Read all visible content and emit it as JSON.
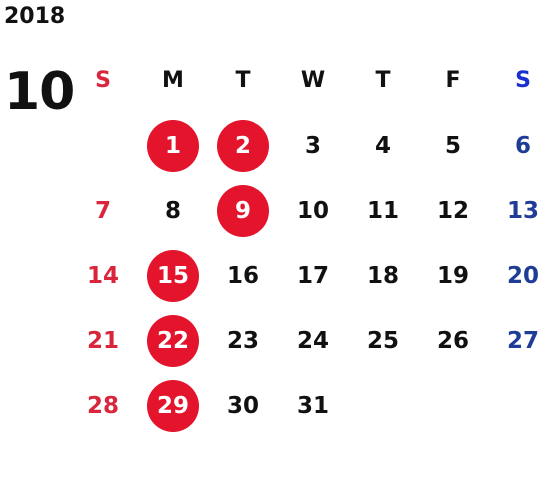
{
  "calendar": {
    "year": "2018",
    "month": "10",
    "weekdays": [
      {
        "label": "S",
        "type": "sun"
      },
      {
        "label": "M",
        "type": "weekday"
      },
      {
        "label": "T",
        "type": "weekday"
      },
      {
        "label": "W",
        "type": "weekday"
      },
      {
        "label": "T",
        "type": "weekday"
      },
      {
        "label": "F",
        "type": "weekday"
      },
      {
        "label": "S",
        "type": "sat"
      }
    ],
    "first_weekday_index": 1,
    "days_in_month": 31,
    "highlighted_days": [
      1,
      2,
      9,
      15,
      22,
      29
    ],
    "colors": {
      "sunday": "#d9263c",
      "saturday_header": "#1a2fd0",
      "saturday": "#1f3d96",
      "highlight_bg": "#e3142c",
      "highlight_text": "#ffffff",
      "default_text": "#111111"
    }
  }
}
